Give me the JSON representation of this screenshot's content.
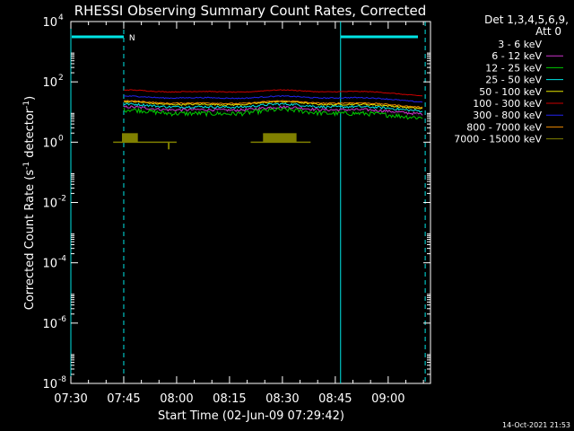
{
  "chart_data": {
    "type": "line",
    "title": "RHESSI Observing Summary Count Rates, Corrected",
    "xlabel": "Start Time (02-Jun-09 07:29:42)",
    "ylabel": "Corrected Count Rate (s⁻¹ detector⁻¹)",
    "ylabel_base": "Corrected Count Rate (s",
    "ylabel_mid": " detector",
    "ylabel_sup": "-1",
    "ylabel_end": ")",
    "y_scale": "log",
    "ylim_exp": [
      -8,
      4
    ],
    "y_tick_exponents": [
      4,
      2,
      0,
      -2,
      -4,
      -6,
      -8
    ],
    "xlim_min": [
      0,
      102
    ],
    "x_ticks": [
      {
        "label": "07:30",
        "min": 0
      },
      {
        "label": "07:45",
        "min": 15
      },
      {
        "label": "08:00",
        "min": 30
      },
      {
        "label": "08:15",
        "min": 45
      },
      {
        "label": "08:30",
        "min": 60
      },
      {
        "label": "08:45",
        "min": 75
      },
      {
        "label": "09:00",
        "min": 90
      }
    ],
    "legend": {
      "header1": "Det 1,3,4,5,6,9,",
      "header2": "Att 0",
      "placement": "top-right"
    },
    "series": [
      {
        "name": "3 - 6 keV",
        "color": "#000000",
        "level": 11,
        "amp": 0.25,
        "noise": 0.35
      },
      {
        "name": "6 - 12 keV",
        "color": "#cc33cc",
        "level": 12,
        "amp": 0.25,
        "noise": 0.2
      },
      {
        "name": "12 - 25 keV",
        "color": "#00cc00",
        "level": 9,
        "amp": 0.3,
        "noise": 0.35
      },
      {
        "name": "25 - 50 keV",
        "color": "#00e5e5",
        "level": 15,
        "amp": 0.25,
        "noise": 0.18
      },
      {
        "name": "50 - 100 keV",
        "color": "#e5e500",
        "level": 18,
        "amp": 0.25,
        "noise": 0.12
      },
      {
        "name": "100 - 300 keV",
        "color": "#cc0000",
        "level": 48,
        "amp": 0.2,
        "noise": 0.06
      },
      {
        "name": "300 - 800 keV",
        "color": "#2222ee",
        "level": 30,
        "amp": 0.2,
        "noise": 0.08
      },
      {
        "name": "800 - 7000 keV",
        "color": "#ee8800",
        "level": 20,
        "amp": 0.22,
        "noise": 0.08
      },
      {
        "name": "7000 - 15000 keV",
        "color": "#808000",
        "level": 1.0,
        "amp": 0.0,
        "noise": 0.0
      }
    ],
    "orbit_peaks_min": [
      15.5,
      59.5
    ],
    "night_intervals_min": [
      [
        0,
        15
      ],
      [
        76.5,
        102
      ]
    ],
    "saa_label": "N",
    "saa_label_min": 16.5,
    "dashed_lines_min": [
      15,
      100.5
    ],
    "solid_lines_min": [
      0,
      76.5
    ],
    "flag_7000_ranges_min": [
      [
        14.5,
        19
      ],
      [
        54.5,
        64
      ]
    ]
  },
  "footer": {
    "timestamp": "14-Oct-2021 21:53"
  }
}
